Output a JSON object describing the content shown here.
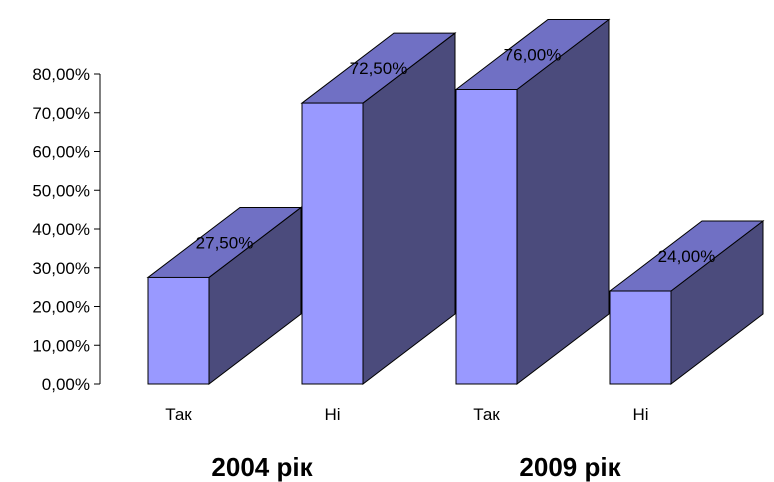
{
  "chart_data": {
    "type": "bar",
    "style": "3d-column",
    "ylim": [
      0,
      80
    ],
    "yticks": [
      "0,00%",
      "10,00%",
      "20,00%",
      "30,00%",
      "40,00%",
      "50,00%",
      "60,00%",
      "70,00%",
      "80,00%"
    ],
    "groups": [
      {
        "label": "2004 рік",
        "bars": [
          {
            "category": "Так",
            "value": 27.5,
            "value_label": "27,50%"
          },
          {
            "category": "Ні",
            "value": 72.5,
            "value_label": "72,50%"
          }
        ]
      },
      {
        "label": "2009 рік",
        "bars": [
          {
            "category": "Так",
            "value": 76.0,
            "value_label": "76,00%"
          },
          {
            "category": "Ні",
            "value": 24.0,
            "value_label": "24,00%"
          }
        ]
      }
    ],
    "colors": {
      "front": "#9999ff",
      "top": "#7070c4",
      "side": "#4b4b7c",
      "outline": "#000000"
    },
    "grid": false,
    "legend": "none"
  }
}
